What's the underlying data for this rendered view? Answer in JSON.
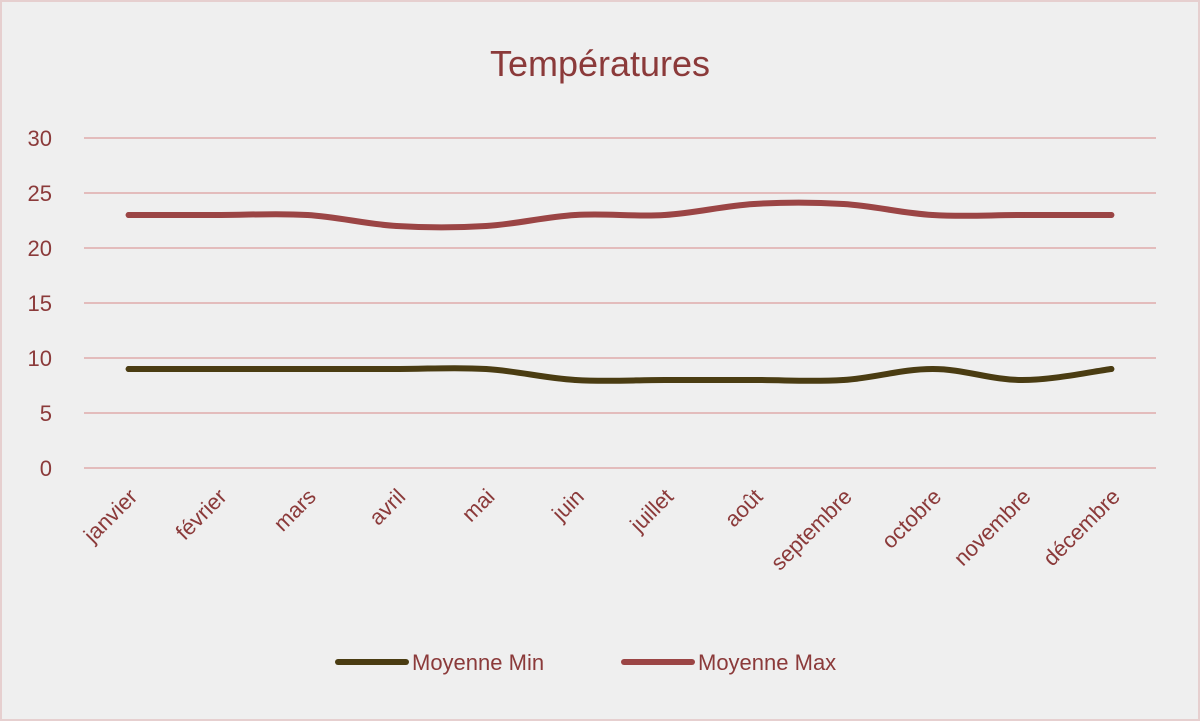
{
  "chart_data": {
    "type": "line",
    "title": "Températures",
    "categories": [
      "janvier",
      "février",
      "mars",
      "avril",
      "mai",
      "juin",
      "juillet",
      "août",
      "septembre",
      "octobre",
      "novembre",
      "décembre"
    ],
    "yticks": [
      "0",
      "5",
      "10",
      "15",
      "20",
      "25",
      "30"
    ],
    "ylim": [
      0,
      30
    ],
    "grid": true,
    "legend_position": "bottom",
    "series": [
      {
        "name": "Moyenne Min",
        "color": "#4a3c12",
        "values": [
          9,
          9,
          9,
          9,
          9,
          8,
          8,
          8,
          8,
          9,
          8,
          9
        ]
      },
      {
        "name": "Moyenne Max",
        "color": "#9b4545",
        "values": [
          23,
          23,
          23,
          22,
          22,
          23,
          23,
          24,
          24,
          23,
          23,
          23
        ]
      }
    ]
  }
}
